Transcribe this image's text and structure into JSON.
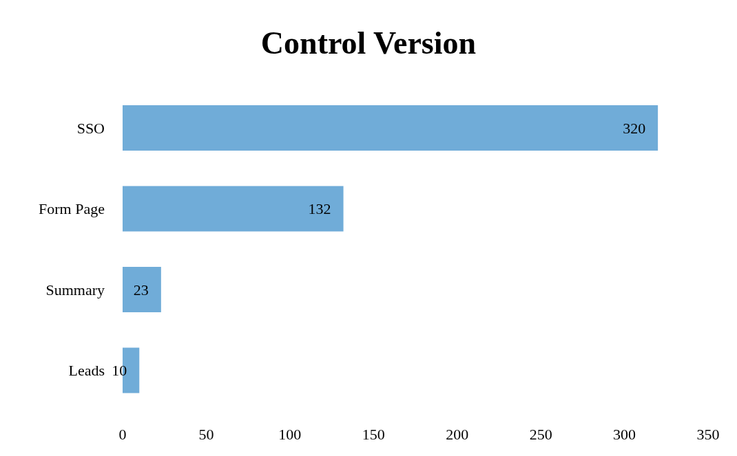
{
  "chart_data": {
    "type": "bar",
    "title": "Control Version",
    "orientation": "horizontal",
    "categories": [
      "SSO",
      "Form Page",
      "Summary",
      "Leads"
    ],
    "values": [
      320,
      132,
      23,
      10
    ],
    "color": "#70acd8",
    "xlim": [
      0,
      350
    ],
    "xticks": [
      0,
      50,
      100,
      150,
      200,
      250,
      300,
      350
    ],
    "data_labels": true
  }
}
